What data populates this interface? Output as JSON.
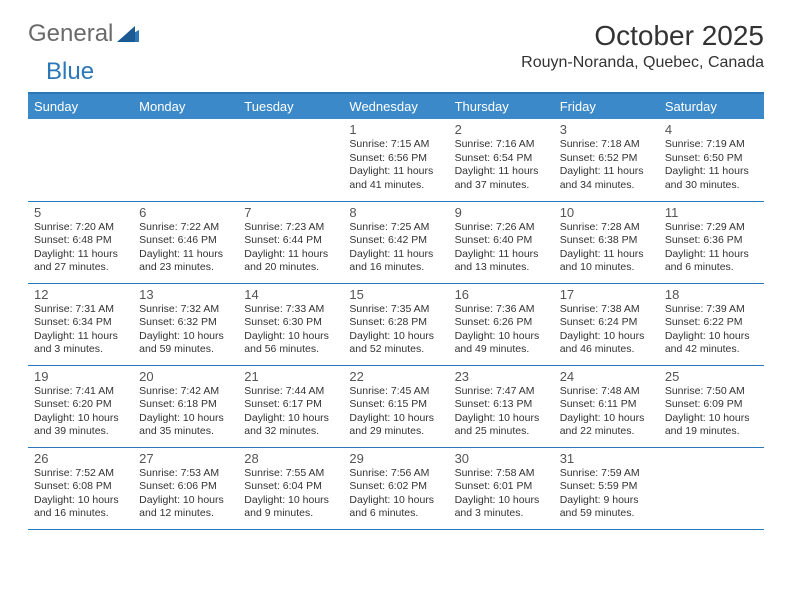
{
  "logo": {
    "general": "General",
    "blue": "Blue"
  },
  "title": "October 2025",
  "location": "Rouyn-Noranda, Quebec, Canada",
  "dayHeaders": [
    "Sunday",
    "Monday",
    "Tuesday",
    "Wednesday",
    "Thursday",
    "Friday",
    "Saturday"
  ],
  "colors": {
    "headerBg": "#3b89c9",
    "borderBlue": "#2c77b8",
    "logoGray": "#6a6a6a",
    "logoBlue": "#2c77b8",
    "text": "#333333",
    "background": "#ffffff"
  },
  "weeks": [
    [
      null,
      null,
      null,
      {
        "num": "1",
        "l1": "Sunrise: 7:15 AM",
        "l2": "Sunset: 6:56 PM",
        "l3": "Daylight: 11 hours",
        "l4": "and 41 minutes."
      },
      {
        "num": "2",
        "l1": "Sunrise: 7:16 AM",
        "l2": "Sunset: 6:54 PM",
        "l3": "Daylight: 11 hours",
        "l4": "and 37 minutes."
      },
      {
        "num": "3",
        "l1": "Sunrise: 7:18 AM",
        "l2": "Sunset: 6:52 PM",
        "l3": "Daylight: 11 hours",
        "l4": "and 34 minutes."
      },
      {
        "num": "4",
        "l1": "Sunrise: 7:19 AM",
        "l2": "Sunset: 6:50 PM",
        "l3": "Daylight: 11 hours",
        "l4": "and 30 minutes."
      }
    ],
    [
      {
        "num": "5",
        "l1": "Sunrise: 7:20 AM",
        "l2": "Sunset: 6:48 PM",
        "l3": "Daylight: 11 hours",
        "l4": "and 27 minutes."
      },
      {
        "num": "6",
        "l1": "Sunrise: 7:22 AM",
        "l2": "Sunset: 6:46 PM",
        "l3": "Daylight: 11 hours",
        "l4": "and 23 minutes."
      },
      {
        "num": "7",
        "l1": "Sunrise: 7:23 AM",
        "l2": "Sunset: 6:44 PM",
        "l3": "Daylight: 11 hours",
        "l4": "and 20 minutes."
      },
      {
        "num": "8",
        "l1": "Sunrise: 7:25 AM",
        "l2": "Sunset: 6:42 PM",
        "l3": "Daylight: 11 hours",
        "l4": "and 16 minutes."
      },
      {
        "num": "9",
        "l1": "Sunrise: 7:26 AM",
        "l2": "Sunset: 6:40 PM",
        "l3": "Daylight: 11 hours",
        "l4": "and 13 minutes."
      },
      {
        "num": "10",
        "l1": "Sunrise: 7:28 AM",
        "l2": "Sunset: 6:38 PM",
        "l3": "Daylight: 11 hours",
        "l4": "and 10 minutes."
      },
      {
        "num": "11",
        "l1": "Sunrise: 7:29 AM",
        "l2": "Sunset: 6:36 PM",
        "l3": "Daylight: 11 hours",
        "l4": "and 6 minutes."
      }
    ],
    [
      {
        "num": "12",
        "l1": "Sunrise: 7:31 AM",
        "l2": "Sunset: 6:34 PM",
        "l3": "Daylight: 11 hours",
        "l4": "and 3 minutes."
      },
      {
        "num": "13",
        "l1": "Sunrise: 7:32 AM",
        "l2": "Sunset: 6:32 PM",
        "l3": "Daylight: 10 hours",
        "l4": "and 59 minutes."
      },
      {
        "num": "14",
        "l1": "Sunrise: 7:33 AM",
        "l2": "Sunset: 6:30 PM",
        "l3": "Daylight: 10 hours",
        "l4": "and 56 minutes."
      },
      {
        "num": "15",
        "l1": "Sunrise: 7:35 AM",
        "l2": "Sunset: 6:28 PM",
        "l3": "Daylight: 10 hours",
        "l4": "and 52 minutes."
      },
      {
        "num": "16",
        "l1": "Sunrise: 7:36 AM",
        "l2": "Sunset: 6:26 PM",
        "l3": "Daylight: 10 hours",
        "l4": "and 49 minutes."
      },
      {
        "num": "17",
        "l1": "Sunrise: 7:38 AM",
        "l2": "Sunset: 6:24 PM",
        "l3": "Daylight: 10 hours",
        "l4": "and 46 minutes."
      },
      {
        "num": "18",
        "l1": "Sunrise: 7:39 AM",
        "l2": "Sunset: 6:22 PM",
        "l3": "Daylight: 10 hours",
        "l4": "and 42 minutes."
      }
    ],
    [
      {
        "num": "19",
        "l1": "Sunrise: 7:41 AM",
        "l2": "Sunset: 6:20 PM",
        "l3": "Daylight: 10 hours",
        "l4": "and 39 minutes."
      },
      {
        "num": "20",
        "l1": "Sunrise: 7:42 AM",
        "l2": "Sunset: 6:18 PM",
        "l3": "Daylight: 10 hours",
        "l4": "and 35 minutes."
      },
      {
        "num": "21",
        "l1": "Sunrise: 7:44 AM",
        "l2": "Sunset: 6:17 PM",
        "l3": "Daylight: 10 hours",
        "l4": "and 32 minutes."
      },
      {
        "num": "22",
        "l1": "Sunrise: 7:45 AM",
        "l2": "Sunset: 6:15 PM",
        "l3": "Daylight: 10 hours",
        "l4": "and 29 minutes."
      },
      {
        "num": "23",
        "l1": "Sunrise: 7:47 AM",
        "l2": "Sunset: 6:13 PM",
        "l3": "Daylight: 10 hours",
        "l4": "and 25 minutes."
      },
      {
        "num": "24",
        "l1": "Sunrise: 7:48 AM",
        "l2": "Sunset: 6:11 PM",
        "l3": "Daylight: 10 hours",
        "l4": "and 22 minutes."
      },
      {
        "num": "25",
        "l1": "Sunrise: 7:50 AM",
        "l2": "Sunset: 6:09 PM",
        "l3": "Daylight: 10 hours",
        "l4": "and 19 minutes."
      }
    ],
    [
      {
        "num": "26",
        "l1": "Sunrise: 7:52 AM",
        "l2": "Sunset: 6:08 PM",
        "l3": "Daylight: 10 hours",
        "l4": "and 16 minutes."
      },
      {
        "num": "27",
        "l1": "Sunrise: 7:53 AM",
        "l2": "Sunset: 6:06 PM",
        "l3": "Daylight: 10 hours",
        "l4": "and 12 minutes."
      },
      {
        "num": "28",
        "l1": "Sunrise: 7:55 AM",
        "l2": "Sunset: 6:04 PM",
        "l3": "Daylight: 10 hours",
        "l4": "and 9 minutes."
      },
      {
        "num": "29",
        "l1": "Sunrise: 7:56 AM",
        "l2": "Sunset: 6:02 PM",
        "l3": "Daylight: 10 hours",
        "l4": "and 6 minutes."
      },
      {
        "num": "30",
        "l1": "Sunrise: 7:58 AM",
        "l2": "Sunset: 6:01 PM",
        "l3": "Daylight: 10 hours",
        "l4": "and 3 minutes."
      },
      {
        "num": "31",
        "l1": "Sunrise: 7:59 AM",
        "l2": "Sunset: 5:59 PM",
        "l3": "Daylight: 9 hours",
        "l4": "and 59 minutes."
      },
      null
    ]
  ]
}
